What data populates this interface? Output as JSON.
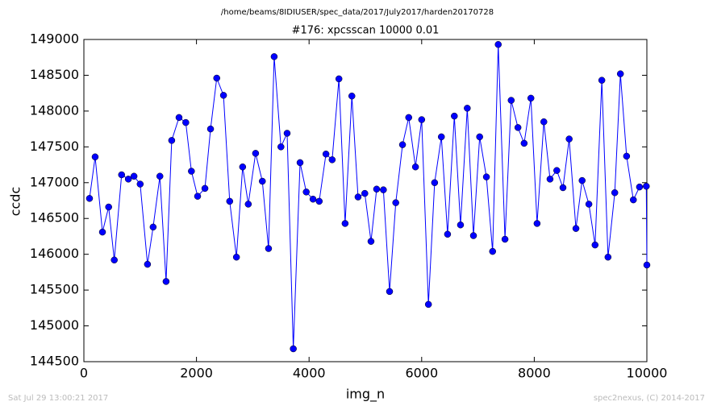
{
  "chart_data": {
    "type": "line",
    "suptitle": "/home/beams/8IDIUSER/spec_data/2017/July2017/harden20170728",
    "title": "#176: xpcsscan 10000 0.01",
    "xlabel": "img_n",
    "ylabel": "ccdc",
    "footer": [
      "Sat Jul 29 13:00:21 2017",
      "spec2nexus, (C) 2014-2017"
    ],
    "xlim": [
      0,
      10000
    ],
    "xticks": [
      0,
      2000,
      4000,
      6000,
      8000,
      10000
    ],
    "ylim": [
      144500,
      149000
    ],
    "yticks": [
      144500,
      145000,
      145500,
      146000,
      146500,
      147000,
      147500,
      148000,
      148500,
      149000
    ],
    "grid": false,
    "x": [
      100,
      200,
      330,
      440,
      540,
      670,
      790,
      890,
      1000,
      1130,
      1230,
      1350,
      1460,
      1560,
      1690,
      1810,
      1910,
      2020,
      2150,
      2250,
      2360,
      2480,
      2590,
      2710,
      2820,
      2920,
      3050,
      3170,
      3280,
      3380,
      3500,
      3610,
      3720,
      3840,
      3950,
      4070,
      4180,
      4300,
      4410,
      4530,
      4640,
      4760,
      4870,
      4990,
      5100,
      5200,
      5320,
      5430,
      5540,
      5660,
      5770,
      5890,
      6000,
      6120,
      6230,
      6350,
      6460,
      6580,
      6690,
      6810,
      6920,
      7030,
      7150,
      7260,
      7360,
      7480,
      7590,
      7710,
      7820,
      7940,
      8050,
      8170,
      8280,
      8400,
      8510,
      8620,
      8740,
      8850,
      8970,
      9080,
      9200,
      9310,
      9430,
      9530,
      9640,
      9760,
      9870,
      9990,
      10000
    ],
    "series": [
      {
        "name": "ccdc",
        "color": "#0000ff",
        "values": [
          146780,
          147360,
          146310,
          146660,
          145920,
          147110,
          147050,
          147090,
          146980,
          145860,
          146380,
          147090,
          145620,
          147590,
          147910,
          147840,
          147160,
          146810,
          146920,
          147750,
          148460,
          148220,
          146740,
          145960,
          147220,
          146700,
          147410,
          147020,
          146080,
          148760,
          147500,
          147690,
          144680,
          147280,
          146870,
          146770,
          146740,
          147400,
          147320,
          148450,
          146430,
          148210,
          146800,
          146850,
          146180,
          146910,
          146900,
          145480,
          146720,
          147530,
          147910,
          147220,
          147880,
          145300,
          147000,
          147640,
          146280,
          147930,
          146410,
          148040,
          146260,
          147640,
          147080,
          146040,
          148930,
          146210,
          148150,
          147770,
          147550,
          148180,
          146430,
          147850,
          147050,
          147170,
          146930,
          147610,
          146360,
          147030,
          146700,
          146130,
          148430,
          145960,
          146860,
          148520,
          147370,
          146760,
          146940,
          146950,
          145850
        ]
      }
    ]
  }
}
